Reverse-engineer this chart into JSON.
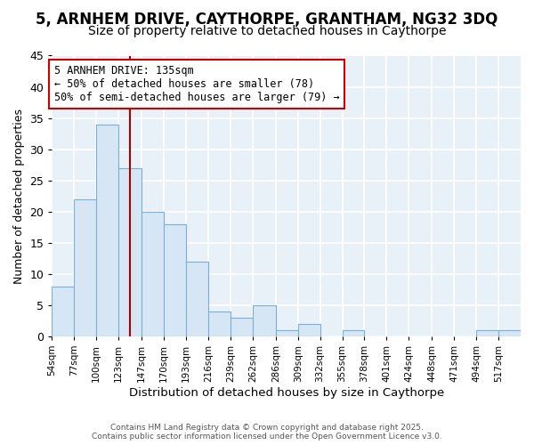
{
  "title1": "5, ARNHEM DRIVE, CAYTHORPE, GRANTHAM, NG32 3DQ",
  "title2": "Size of property relative to detached houses in Caythorpe",
  "xlabel": "Distribution of detached houses by size in Caythorpe",
  "ylabel": "Number of detached properties",
  "bin_labels": [
    "54sqm",
    "77sqm",
    "100sqm",
    "123sqm",
    "147sqm",
    "170sqm",
    "193sqm",
    "216sqm",
    "239sqm",
    "262sqm",
    "286sqm",
    "309sqm",
    "332sqm",
    "355sqm",
    "378sqm",
    "401sqm",
    "424sqm",
    "448sqm",
    "471sqm",
    "494sqm",
    "517sqm"
  ],
  "bin_edges": [
    54,
    77,
    100,
    123,
    147,
    170,
    193,
    216,
    239,
    262,
    286,
    309,
    332,
    355,
    378,
    401,
    424,
    448,
    471,
    494,
    517,
    540
  ],
  "values": [
    8,
    22,
    34,
    27,
    20,
    18,
    12,
    4,
    3,
    5,
    1,
    2,
    0,
    1,
    0,
    0,
    0,
    0,
    0,
    1,
    1
  ],
  "bar_color": "#d6e6f5",
  "bar_edge_color": "#7ab0d4",
  "property_size": 135,
  "vline_color": "#aa0000",
  "annotation_text": "5 ARNHEM DRIVE: 135sqm\n← 50% of detached houses are smaller (78)\n50% of semi-detached houses are larger (79) →",
  "annotation_box_color": "#ffffff",
  "annotation_box_edge": "#cc0000",
  "ylim": [
    0,
    45
  ],
  "yticks": [
    0,
    5,
    10,
    15,
    20,
    25,
    30,
    35,
    40,
    45
  ],
  "footer1": "Contains HM Land Registry data © Crown copyright and database right 2025.",
  "footer2": "Contains public sector information licensed under the Open Government Licence v3.0.",
  "fig_bg_color": "#ffffff",
  "plot_bg_color": "#e8f0f8",
  "grid_color": "#ffffff",
  "title1_fontsize": 12,
  "title2_fontsize": 10,
  "annot_fontsize": 8.5
}
